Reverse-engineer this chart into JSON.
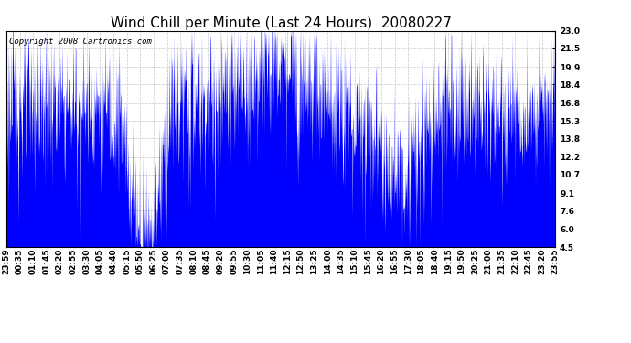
{
  "title": "Wind Chill per Minute (Last 24 Hours)  20080227",
  "copyright": "Copyright 2008 Cartronics.com",
  "bar_color": "#0000ff",
  "background_color": "#ffffff",
  "plot_bg_color": "#ffffff",
  "grid_color": "#c8c8c8",
  "ylim": [
    4.5,
    23.0
  ],
  "yticks": [
    4.5,
    6.0,
    7.6,
    9.1,
    10.7,
    12.2,
    13.8,
    15.3,
    16.8,
    18.4,
    19.9,
    21.5,
    23.0
  ],
  "xtick_labels": [
    "23:59",
    "00:35",
    "01:10",
    "01:45",
    "02:20",
    "02:55",
    "03:30",
    "04:05",
    "04:40",
    "05:15",
    "05:50",
    "06:25",
    "07:00",
    "07:35",
    "08:10",
    "08:45",
    "09:20",
    "09:55",
    "10:30",
    "11:05",
    "11:40",
    "12:15",
    "12:50",
    "13:25",
    "14:00",
    "14:35",
    "15:10",
    "15:45",
    "16:20",
    "16:55",
    "17:30",
    "18:05",
    "18:40",
    "19:15",
    "19:50",
    "20:25",
    "21:00",
    "21:35",
    "22:10",
    "22:45",
    "23:20",
    "23:55"
  ],
  "title_fontsize": 11,
  "tick_fontsize": 6.5,
  "copyright_fontsize": 6.5,
  "figwidth": 6.9,
  "figheight": 3.75,
  "dpi": 100
}
